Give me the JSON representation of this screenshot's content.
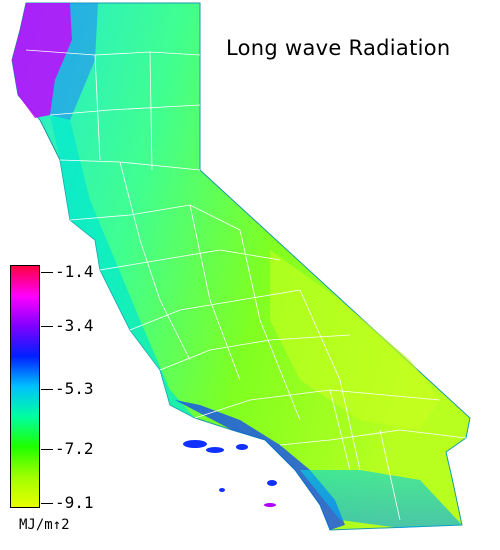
{
  "title": "Long wave Radiation",
  "legend": {
    "ticks": [
      "-1.4",
      "-3.4",
      "-5.3",
      "-7.2",
      "-9.1"
    ],
    "unit": "MJ/m↑2",
    "colors": [
      "#ff0040",
      "#ff00ff",
      "#8000ff",
      "#0020ff",
      "#00c0ff",
      "#00ffa0",
      "#20ff00",
      "#a0ff00",
      "#e8ff00"
    ]
  },
  "map": {
    "region": "California",
    "palette": {
      "north_coast": "#c000ff",
      "coast": "#20e8c8",
      "central": "#60ff40",
      "inland": "#b0ff20",
      "south_coast": "#1040ff",
      "border": "#ffffff"
    }
  }
}
